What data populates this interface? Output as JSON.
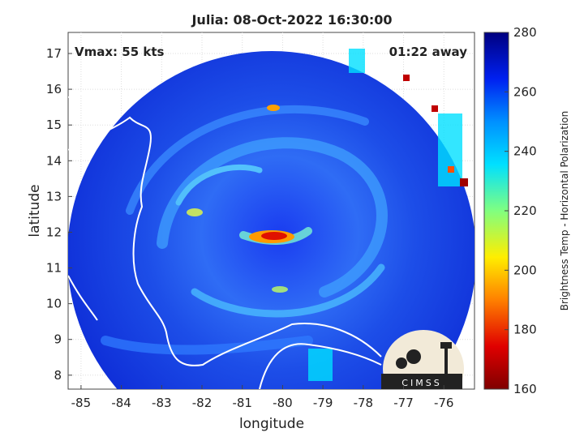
{
  "title": "Julia: 08-Oct-2022 16:30:00",
  "annotations": {
    "left": "Vmax: 55 kts",
    "right": "01:22 away"
  },
  "xaxis": {
    "label": "longitude",
    "lim": [
      -85.32,
      -75.24
    ],
    "ticks": [
      -85,
      -84,
      -83,
      -82,
      -81,
      -80,
      -79,
      -78,
      -77,
      -76
    ]
  },
  "yaxis": {
    "label": "latitude",
    "lim": [
      7.61,
      17.59
    ],
    "ticks": [
      8,
      9,
      10,
      11,
      12,
      13,
      14,
      15,
      16,
      17
    ]
  },
  "colorbar": {
    "label": "Brightness Temp - Horizontal Polarization",
    "lim": [
      160,
      280
    ],
    "ticks": [
      160,
      180,
      200,
      220,
      240,
      260,
      280
    ]
  },
  "logo": "CIMSS"
}
